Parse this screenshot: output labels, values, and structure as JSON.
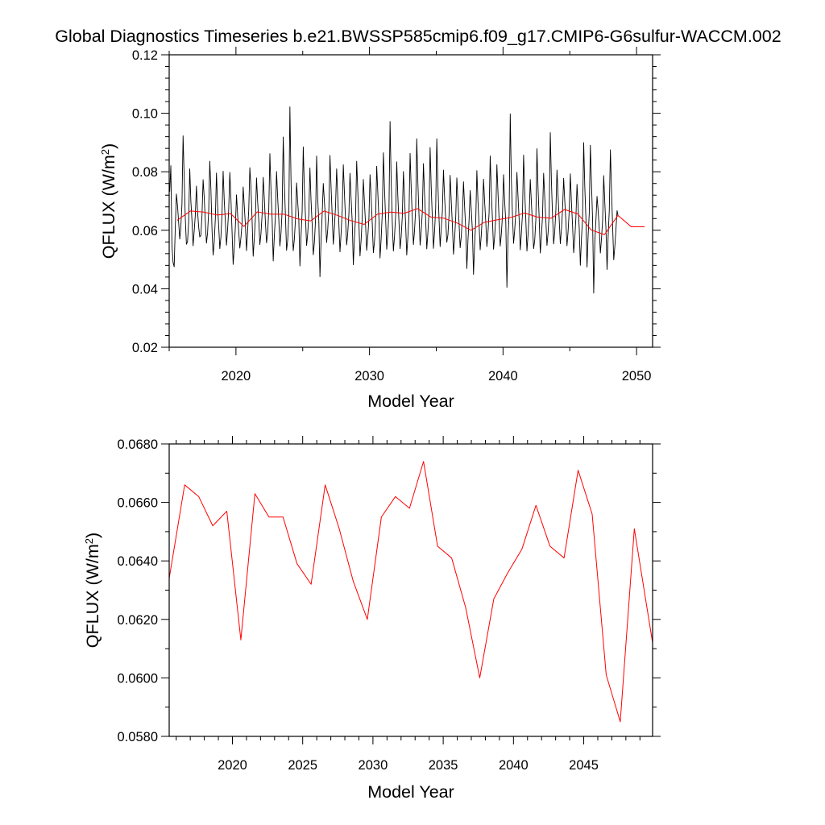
{
  "figure": {
    "title": "Global Diagnostics Timeseries b.e21.BWSSP585cmip6.f09_g17.CMIP6-G6sulfur-WACCM.002"
  },
  "chart_data": [
    {
      "type": "line",
      "xlabel": "Model Year",
      "ylabel": "QFLUX (W/m²)",
      "ylabel_main": "QFLUX (W/m",
      "ylabel_sup": "2",
      "ylabel_close": ")",
      "xlim": [
        2015,
        2051.2
      ],
      "ylim": [
        0.02,
        0.12
      ],
      "xticks": [
        2020,
        2030,
        2040,
        2050
      ],
      "xtick_labels": [
        "2020",
        "2030",
        "2040",
        "2050"
      ],
      "yticks": [
        0.02,
        0.04,
        0.06,
        0.08,
        0.1,
        0.12
      ],
      "ytick_labels": [
        "0.02",
        "0.04",
        "0.06",
        "0.08",
        "0.10",
        "0.12"
      ],
      "series": [
        {
          "kind": "monthly",
          "color": "#000000",
          "x_start": 2015.04,
          "x_step": 0.0833333,
          "values": [
            0.0732,
            0.0821,
            0.0548,
            0.049,
            0.0475,
            0.0611,
            0.0724,
            0.0684,
            0.0628,
            0.057,
            0.0612,
            0.069,
            0.0923,
            0.078,
            0.0641,
            0.0552,
            0.0561,
            0.0627,
            0.081,
            0.0699,
            0.0633,
            0.0547,
            0.0598,
            0.0652,
            0.0751,
            0.0666,
            0.0612,
            0.0577,
            0.0583,
            0.0651,
            0.0773,
            0.0712,
            0.063,
            0.0556,
            0.0591,
            0.0664,
            0.0836,
            0.0742,
            0.0603,
            0.0515,
            0.056,
            0.064,
            0.0796,
            0.0688,
            0.0614,
            0.0537,
            0.0577,
            0.0658,
            0.0802,
            0.0702,
            0.0629,
            0.0549,
            0.0603,
            0.0671,
            0.0798,
            0.0709,
            0.0598,
            0.0483,
            0.0541,
            0.0611,
            0.0721,
            0.0654,
            0.0597,
            0.0539,
            0.0575,
            0.0623,
            0.0748,
            0.0683,
            0.0618,
            0.053,
            0.0598,
            0.0669,
            0.0814,
            0.0748,
            0.0637,
            0.0511,
            0.0572,
            0.0642,
            0.0779,
            0.0699,
            0.0635,
            0.0551,
            0.0588,
            0.0653,
            0.0781,
            0.071,
            0.0626,
            0.0557,
            0.059,
            0.0667,
            0.0862,
            0.0738,
            0.0643,
            0.0495,
            0.058,
            0.0651,
            0.0801,
            0.0712,
            0.0638,
            0.0546,
            0.059,
            0.0666,
            0.0919,
            0.0763,
            0.0647,
            0.0531,
            0.0566,
            0.0648,
            0.1022,
            0.0767,
            0.0618,
            0.053,
            0.057,
            0.0637,
            0.0762,
            0.0698,
            0.0637,
            0.0478,
            0.058,
            0.0664,
            0.0885,
            0.0741,
            0.0647,
            0.0548,
            0.0588,
            0.0656,
            0.0813,
            0.0701,
            0.062,
            0.0516,
            0.0558,
            0.0632,
            0.0854,
            0.0707,
            0.063,
            0.0441,
            0.0568,
            0.0654,
            0.076,
            0.0699,
            0.0639,
            0.0558,
            0.0603,
            0.0671,
            0.0856,
            0.0748,
            0.0651,
            0.0552,
            0.061,
            0.0682,
            0.081,
            0.0715,
            0.0621,
            0.0526,
            0.059,
            0.0668,
            0.0824,
            0.0728,
            0.0636,
            0.055,
            0.0592,
            0.0655,
            0.0795,
            0.0709,
            0.0629,
            0.0482,
            0.0573,
            0.0647,
            0.0836,
            0.0735,
            0.0625,
            0.0512,
            0.0567,
            0.0643,
            0.0774,
            0.0694,
            0.0619,
            0.0531,
            0.0578,
            0.064,
            0.079,
            0.0712,
            0.0624,
            0.0523,
            0.0561,
            0.0633,
            0.0819,
            0.0728,
            0.0641,
            0.0505,
            0.057,
            0.0658,
            0.0865,
            0.0745,
            0.064,
            0.0535,
            0.0587,
            0.0664,
            0.0972,
            0.077,
            0.0628,
            0.0529,
            0.0579,
            0.065,
            0.0834,
            0.0716,
            0.063,
            0.0537,
            0.0578,
            0.0647,
            0.0801,
            0.0709,
            0.0621,
            0.0515,
            0.0577,
            0.0649,
            0.0863,
            0.0743,
            0.064,
            0.0551,
            0.06,
            0.0671,
            0.0913,
            0.0763,
            0.0653,
            0.0549,
            0.0598,
            0.0664,
            0.0828,
            0.0722,
            0.0636,
            0.0536,
            0.0592,
            0.0661,
            0.0883,
            0.0747,
            0.0641,
            0.0538,
            0.0596,
            0.0676,
            0.0913,
            0.0754,
            0.0642,
            0.0544,
            0.0607,
            0.0663,
            0.0806,
            0.0715,
            0.0637,
            0.0559,
            0.0584,
            0.0652,
            0.0788,
            0.07,
            0.0619,
            0.0518,
            0.057,
            0.0644,
            0.0779,
            0.0697,
            0.0625,
            0.054,
            0.058,
            0.0647,
            0.0766,
            0.0681,
            0.0605,
            0.0469,
            0.0565,
            0.0635,
            0.0736,
            0.067,
            0.0598,
            0.0449,
            0.0553,
            0.0632,
            0.0804,
            0.0699,
            0.0618,
            0.0533,
            0.0585,
            0.0653,
            0.0775,
            0.0697,
            0.0629,
            0.0544,
            0.0592,
            0.066,
            0.0854,
            0.0731,
            0.0639,
            0.0535,
            0.0579,
            0.0648,
            0.0824,
            0.0727,
            0.0638,
            0.0546,
            0.0588,
            0.065,
            0.079,
            0.0698,
            0.0628,
            0.0405,
            0.0575,
            0.0655,
            0.0998,
            0.0773,
            0.0652,
            0.0555,
            0.06,
            0.0662,
            0.0798,
            0.0715,
            0.0637,
            0.0533,
            0.059,
            0.0656,
            0.0857,
            0.0735,
            0.0636,
            0.0529,
            0.0585,
            0.0651,
            0.0774,
            0.0694,
            0.0621,
            0.0537,
            0.0566,
            0.0636,
            0.0879,
            0.0741,
            0.0642,
            0.0522,
            0.0578,
            0.0648,
            0.0795,
            0.0712,
            0.0635,
            0.0548,
            0.0591,
            0.0659,
            0.0934,
            0.0769,
            0.065,
            0.0553,
            0.0596,
            0.0668,
            0.0806,
            0.0717,
            0.0636,
            0.0554,
            0.0603,
            0.0669,
            0.0778,
            0.0701,
            0.063,
            0.0547,
            0.0597,
            0.0666,
            0.0793,
            0.0695,
            0.0617,
            0.0523,
            0.0572,
            0.0643,
            0.0757,
            0.068,
            0.0608,
            0.048,
            0.0572,
            0.064,
            0.09,
            0.0748,
            0.0641,
            0.0474,
            0.0582,
            0.0658,
            0.0891,
            0.0762,
            0.0637,
            0.0385,
            0.056,
            0.0635,
            0.0716,
            0.0667,
            0.0606,
            0.0522,
            0.0571,
            0.0633,
            0.0787,
            0.0693,
            0.0606,
            0.0466,
            0.058,
            0.0667,
            0.0875,
            0.0738,
            0.0615,
            0.0499,
            0.0545,
            0.0604,
            0.0667,
            0.0648
          ]
        },
        {
          "kind": "annual",
          "color": "#ff0000",
          "x": [
            2015,
            2016,
            2017,
            2018,
            2019,
            2020,
            2021,
            2022,
            2023,
            2024,
            2025,
            2026,
            2027,
            2028,
            2029,
            2030,
            2031,
            2032,
            2033,
            2034,
            2035,
            2036,
            2037,
            2038,
            2039,
            2040,
            2041,
            2042,
            2043,
            2044,
            2045,
            2046,
            2047,
            2048,
            2049,
            2050
          ],
          "values": [
            0.0634,
            0.0666,
            0.0662,
            0.0652,
            0.0657,
            0.0613,
            0.0663,
            0.0655,
            0.0655,
            0.0639,
            0.0632,
            0.0666,
            0.0651,
            0.0633,
            0.062,
            0.0655,
            0.0662,
            0.0658,
            0.0674,
            0.0645,
            0.0641,
            0.0624,
            0.06,
            0.0627,
            0.0636,
            0.0644,
            0.0659,
            0.0645,
            0.0641,
            0.0671,
            0.0656,
            0.0601,
            0.0585,
            0.0651,
            0.0612,
            0.0612
          ],
          "x_offset": 0.6
        }
      ]
    },
    {
      "type": "line",
      "xlabel": "Model Year",
      "ylabel": "QFLUX (W/m²)",
      "ylabel_main": "QFLUX (W/m",
      "ylabel_sup": "2",
      "ylabel_close": ")",
      "xlim": [
        2015.5,
        2049.9
      ],
      "ylim": [
        0.058,
        0.068
      ],
      "xticks": [
        2020,
        2025,
        2030,
        2035,
        2040,
        2045
      ],
      "xtick_labels": [
        "2020",
        "2025",
        "2030",
        "2035",
        "2040",
        "2045"
      ],
      "yticks": [
        0.058,
        0.06,
        0.062,
        0.064,
        0.066,
        0.068
      ],
      "ytick_labels": [
        "0.0580",
        "0.0600",
        "0.0620",
        "0.0640",
        "0.0660",
        "0.0680"
      ],
      "series": [
        {
          "kind": "annual",
          "color": "#ff0000",
          "x": [
            2015.5,
            2016.6,
            2017.6,
            2018.6,
            2019.6,
            2020.6,
            2021.6,
            2022.6,
            2023.6,
            2024.6,
            2025.6,
            2026.6,
            2027.6,
            2028.6,
            2029.6,
            2030.6,
            2031.6,
            2032.6,
            2033.6,
            2034.6,
            2035.6,
            2036.6,
            2037.6,
            2038.6,
            2039.6,
            2040.6,
            2041.6,
            2042.6,
            2043.6,
            2044.6,
            2045.6,
            2046.6,
            2047.6,
            2048.6,
            2049.9
          ],
          "values": [
            0.0634,
            0.0666,
            0.0662,
            0.0652,
            0.0657,
            0.0613,
            0.0663,
            0.0655,
            0.0655,
            0.0639,
            0.0632,
            0.0666,
            0.0651,
            0.0633,
            0.062,
            0.0655,
            0.0662,
            0.0658,
            0.0674,
            0.0645,
            0.0641,
            0.0624,
            0.06,
            0.0627,
            0.0636,
            0.0644,
            0.0659,
            0.0645,
            0.0641,
            0.0671,
            0.0656,
            0.0601,
            0.0585,
            0.0651,
            0.0612
          ]
        }
      ]
    }
  ]
}
